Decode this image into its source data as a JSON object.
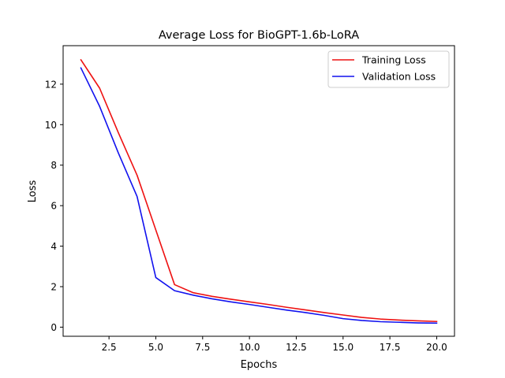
{
  "chart_data": {
    "type": "line",
    "title": "Average Loss for BioGPT-1.6b-LoRA",
    "xlabel": "Epochs",
    "ylabel": "Loss",
    "xlim": [
      0.05,
      20.95
    ],
    "ylim": [
      -0.45,
      13.9
    ],
    "xticks": [
      2.5,
      5.0,
      7.5,
      10.0,
      12.5,
      15.0,
      17.5,
      20.0
    ],
    "xtick_labels": [
      "2.5",
      "5.0",
      "7.5",
      "10.0",
      "12.5",
      "15.0",
      "17.5",
      "20.0"
    ],
    "yticks": [
      0,
      2,
      4,
      6,
      8,
      10,
      12
    ],
    "ytick_labels": [
      "0",
      "2",
      "4",
      "6",
      "8",
      "10",
      "12"
    ],
    "grid": false,
    "legend_position": "top-right",
    "x": [
      1,
      2,
      3,
      4,
      5,
      6,
      7,
      8,
      9,
      10,
      11,
      12,
      13,
      14,
      15,
      16,
      17,
      18,
      19,
      20
    ],
    "series": [
      {
        "name": "Training Loss",
        "color": "#ee1111",
        "values": [
          13.2,
          11.8,
          9.6,
          7.5,
          4.8,
          2.1,
          1.7,
          1.52,
          1.38,
          1.25,
          1.12,
          0.98,
          0.85,
          0.72,
          0.6,
          0.48,
          0.4,
          0.35,
          0.31,
          0.28
        ]
      },
      {
        "name": "Validation Loss",
        "color": "#1111ee",
        "values": [
          12.8,
          10.9,
          8.6,
          6.45,
          2.45,
          1.8,
          1.58,
          1.4,
          1.25,
          1.12,
          0.98,
          0.84,
          0.72,
          0.58,
          0.42,
          0.33,
          0.27,
          0.24,
          0.21,
          0.2
        ]
      }
    ]
  }
}
